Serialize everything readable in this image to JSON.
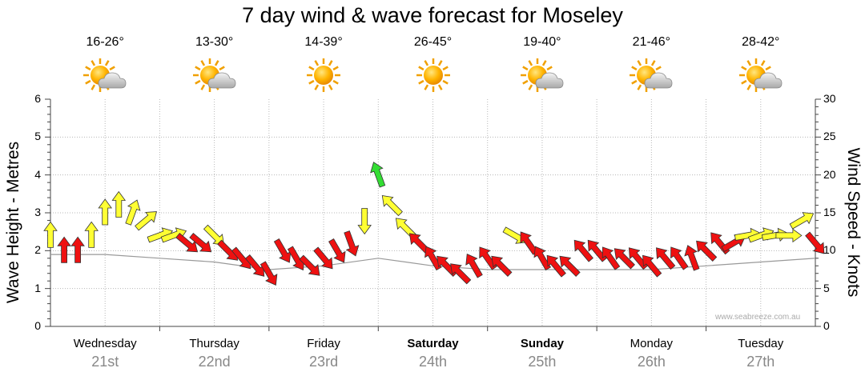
{
  "title": "7 day wind & wave forecast for Moseley",
  "days": [
    {
      "name": "Wednesday",
      "date": "21st",
      "bold": false,
      "temp": "16-26°",
      "icon": "partly-cloudy-icon"
    },
    {
      "name": "Thursday",
      "date": "22nd",
      "bold": false,
      "temp": "13-30°",
      "icon": "partly-cloudy-icon"
    },
    {
      "name": "Friday",
      "date": "23rd",
      "bold": false,
      "temp": "14-39°",
      "icon": "sunny-icon"
    },
    {
      "name": "Saturday",
      "date": "24th",
      "bold": true,
      "temp": "26-45°",
      "icon": "sunny-icon"
    },
    {
      "name": "Sunday",
      "date": "25th",
      "bold": true,
      "temp": "19-40°",
      "icon": "partly-cloudy-icon"
    },
    {
      "name": "Monday",
      "date": "26th",
      "bold": false,
      "temp": "21-46°",
      "icon": "partly-cloudy-icon"
    },
    {
      "name": "Tuesday",
      "date": "27th",
      "bold": false,
      "temp": "28-42°",
      "icon": "partly-cloudy-icon"
    }
  ],
  "watermark": "www.seabreeze.com.au",
  "colors": {
    "calm": "#33dd33",
    "moderate": "#ffff33",
    "strong": "#ee1111"
  },
  "chart_data": {
    "type": "scatter",
    "title": "7 day wind & wave forecast for Moseley",
    "xlabel": "",
    "ylabel_left": "Wave Height - Metres",
    "ylabel_right": "Wind Speed - Knots",
    "ylim_left": [
      0,
      6
    ],
    "ylim_right": [
      0,
      30
    ],
    "yticks_left": [
      "0",
      "1",
      "2",
      "3",
      "4",
      "5",
      "6"
    ],
    "yticks_right": [
      "0",
      "5",
      "10",
      "15",
      "20",
      "25",
      "30"
    ],
    "grid": true,
    "x_unit": "hours from start of Wednesday 21st",
    "xlim": [
      0,
      168
    ],
    "series": [
      {
        "name": "Wind speed (knots)",
        "x": [
          0,
          3,
          6,
          9,
          12,
          15,
          18,
          21,
          24,
          27,
          30,
          33,
          36,
          39,
          42,
          45,
          48,
          51,
          54,
          57,
          60,
          63,
          66,
          69,
          72,
          75,
          78,
          81,
          84,
          87,
          90,
          93,
          96,
          99,
          102,
          105,
          108,
          111,
          114,
          117,
          120,
          123,
          126,
          129,
          132,
          135,
          138,
          141,
          144,
          147,
          150,
          153,
          156,
          159,
          162,
          165,
          168
        ],
        "values": [
          12,
          10,
          10,
          12,
          15,
          16,
          15,
          14,
          12,
          12,
          11,
          11,
          12,
          10,
          9,
          8,
          7,
          10,
          9,
          8,
          9,
          10,
          11,
          14,
          20,
          16,
          13,
          11,
          9,
          8,
          7,
          8,
          9,
          8,
          12,
          11,
          9,
          8,
          8,
          10,
          10,
          9,
          9,
          9,
          8,
          9,
          9,
          9,
          10,
          11,
          11,
          12,
          12,
          12,
          12,
          14,
          11
        ]
      },
      {
        "name": "Wind direction (degrees, from)",
        "x": [
          0,
          3,
          6,
          9,
          12,
          15,
          18,
          21,
          24,
          27,
          30,
          33,
          36,
          39,
          42,
          45,
          48,
          51,
          54,
          57,
          60,
          63,
          66,
          69,
          72,
          75,
          78,
          81,
          84,
          87,
          90,
          93,
          96,
          99,
          102,
          105,
          108,
          111,
          114,
          117,
          120,
          123,
          126,
          129,
          132,
          135,
          138,
          141,
          144,
          147,
          150,
          153,
          156,
          159,
          162,
          165,
          168
        ],
        "values": [
          180,
          180,
          180,
          180,
          180,
          180,
          200,
          230,
          250,
          250,
          310,
          310,
          315,
          315,
          320,
          320,
          330,
          330,
          330,
          315,
          320,
          330,
          340,
          0,
          160,
          135,
          135,
          135,
          150,
          135,
          135,
          150,
          145,
          135,
          300,
          145,
          150,
          140,
          135,
          140,
          140,
          145,
          135,
          140,
          140,
          140,
          145,
          160,
          135,
          140,
          240,
          260,
          250,
          260,
          270,
          240,
          320
        ]
      },
      {
        "name": "Wave height (m)",
        "x": [
          0,
          12,
          24,
          36,
          48,
          60,
          72,
          84,
          96,
          108,
          120,
          132,
          144,
          156,
          168
        ],
        "values": [
          1.9,
          1.9,
          1.8,
          1.7,
          1.5,
          1.6,
          1.8,
          1.6,
          1.5,
          1.5,
          1.5,
          1.5,
          1.6,
          1.7,
          1.8
        ]
      }
    ]
  }
}
